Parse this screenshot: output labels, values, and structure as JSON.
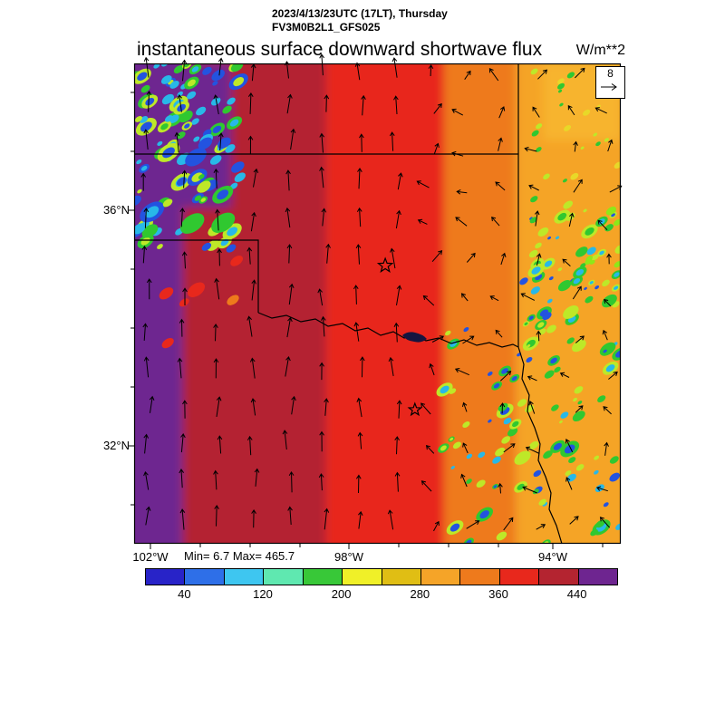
{
  "header": {
    "line1": "2023/4/13/23UTC (17LT), Thursday",
    "line2": "FV3M0B2L1_GFS025"
  },
  "title": {
    "text": "instantaneous surface downward shortwave flux",
    "units": "W/m**2"
  },
  "vector_key": {
    "label": "8"
  },
  "map": {
    "lat_labels": [
      {
        "text": "36°N"
      },
      {
        "text": "32°N"
      }
    ],
    "lon_labels": [
      {
        "text": "102°W"
      },
      {
        "text": "98°W"
      },
      {
        "text": "94°W"
      }
    ]
  },
  "stats": {
    "text": "Min= 6.7 Max= 465.7"
  },
  "chart_data": {
    "type": "heatmap",
    "title": "instantaneous surface downward shortwave flux",
    "units": "W/m**2",
    "datetime": "2023/4/13/23UTC (17LT), Thursday",
    "model": "FV3M0B2L1_GFS025",
    "min": 6.7,
    "max": 465.7,
    "vector_reference": 8,
    "axes": {
      "lat_ticks": [
        "36°N",
        "32°N"
      ],
      "lon_ticks": [
        "102°W",
        "98°W",
        "94°W"
      ]
    },
    "colorbar": {
      "range": [
        0,
        480
      ],
      "tick_values": [
        40,
        120,
        200,
        280,
        360,
        440
      ],
      "colors": [
        "#2823C8",
        "#2E6FE8",
        "#3EC6F0",
        "#5FE8B0",
        "#38C838",
        "#F0F028",
        "#E0BE14",
        "#F5A428",
        "#EE7A1C",
        "#E8281C",
        "#B42430",
        "#6E2590"
      ]
    },
    "field_bands": [
      {
        "x0": 0.0,
        "x1": 0.1,
        "value": 455,
        "color": "#6E2590"
      },
      {
        "x0": 0.1,
        "x1": 0.395,
        "value": 420,
        "color": "#B42430"
      },
      {
        "x0": 0.395,
        "x1": 0.637,
        "value": 385,
        "color": "#E8281C"
      },
      {
        "x0": 0.637,
        "x1": 0.785,
        "value": 340,
        "color": "#EE7A1C"
      },
      {
        "x0": 0.785,
        "x1": 1.0,
        "value": 300,
        "color": "#F5A428"
      }
    ],
    "field_patches": [
      {
        "x0": 0.0,
        "y0": 0.0,
        "x1": 0.2,
        "y1": 0.3,
        "color": "#6E2590"
      },
      {
        "x0": 0.84,
        "y0": 0.0,
        "x1": 1.0,
        "y1": 0.16,
        "color": "#F7B42F"
      }
    ],
    "cloud_clusters": [
      {
        "region": [
          0.0,
          0.0,
          0.22,
          0.4
        ],
        "count": 95,
        "size": [
          3,
          9
        ],
        "rings": true,
        "palette": [
          "#28B8E8",
          "#28B8E8",
          "#2353E0",
          "#30C830",
          "#BEE828"
        ]
      },
      {
        "region": [
          0.8,
          0.28,
          1.0,
          0.62
        ],
        "count": 60,
        "size": [
          2,
          6
        ],
        "rings": true,
        "palette": [
          "#28B8E8",
          "#2353E0",
          "#30C830",
          "#BEE828"
        ]
      },
      {
        "region": [
          0.63,
          0.55,
          1.0,
          1.0
        ],
        "count": 75,
        "size": [
          2,
          6.5
        ],
        "rings": true,
        "palette": [
          "#28B8E8",
          "#2353E0",
          "#30C830",
          "#BEE828"
        ]
      },
      {
        "region": [
          0.82,
          0.0,
          1.0,
          0.26
        ],
        "count": 22,
        "size": [
          2,
          5
        ],
        "rings": false,
        "palette": [
          "#BEE828",
          "#E8D828",
          "#30C830"
        ]
      },
      {
        "region": [
          0.93,
          0.3,
          1.0,
          0.42
        ],
        "count": 8,
        "size": [
          3,
          7
        ],
        "rings": false,
        "palette": [
          "#8FE818",
          "#BEE828"
        ]
      },
      {
        "region": [
          0.05,
          0.32,
          0.22,
          0.68
        ],
        "count": 6,
        "size": [
          5,
          11
        ],
        "rings": false,
        "palette": [
          "#E8281C",
          "#EE7A1C",
          "#E8281C"
        ]
      }
    ],
    "markers": [
      {
        "x": 0.516,
        "y": 0.421,
        "r": 8
      },
      {
        "x": 0.577,
        "y": 0.721,
        "r": 7
      }
    ],
    "wind": {
      "cols": 14,
      "rows": 13,
      "direction": "southerly; arrows point north, lighter and variable in the east"
    }
  }
}
